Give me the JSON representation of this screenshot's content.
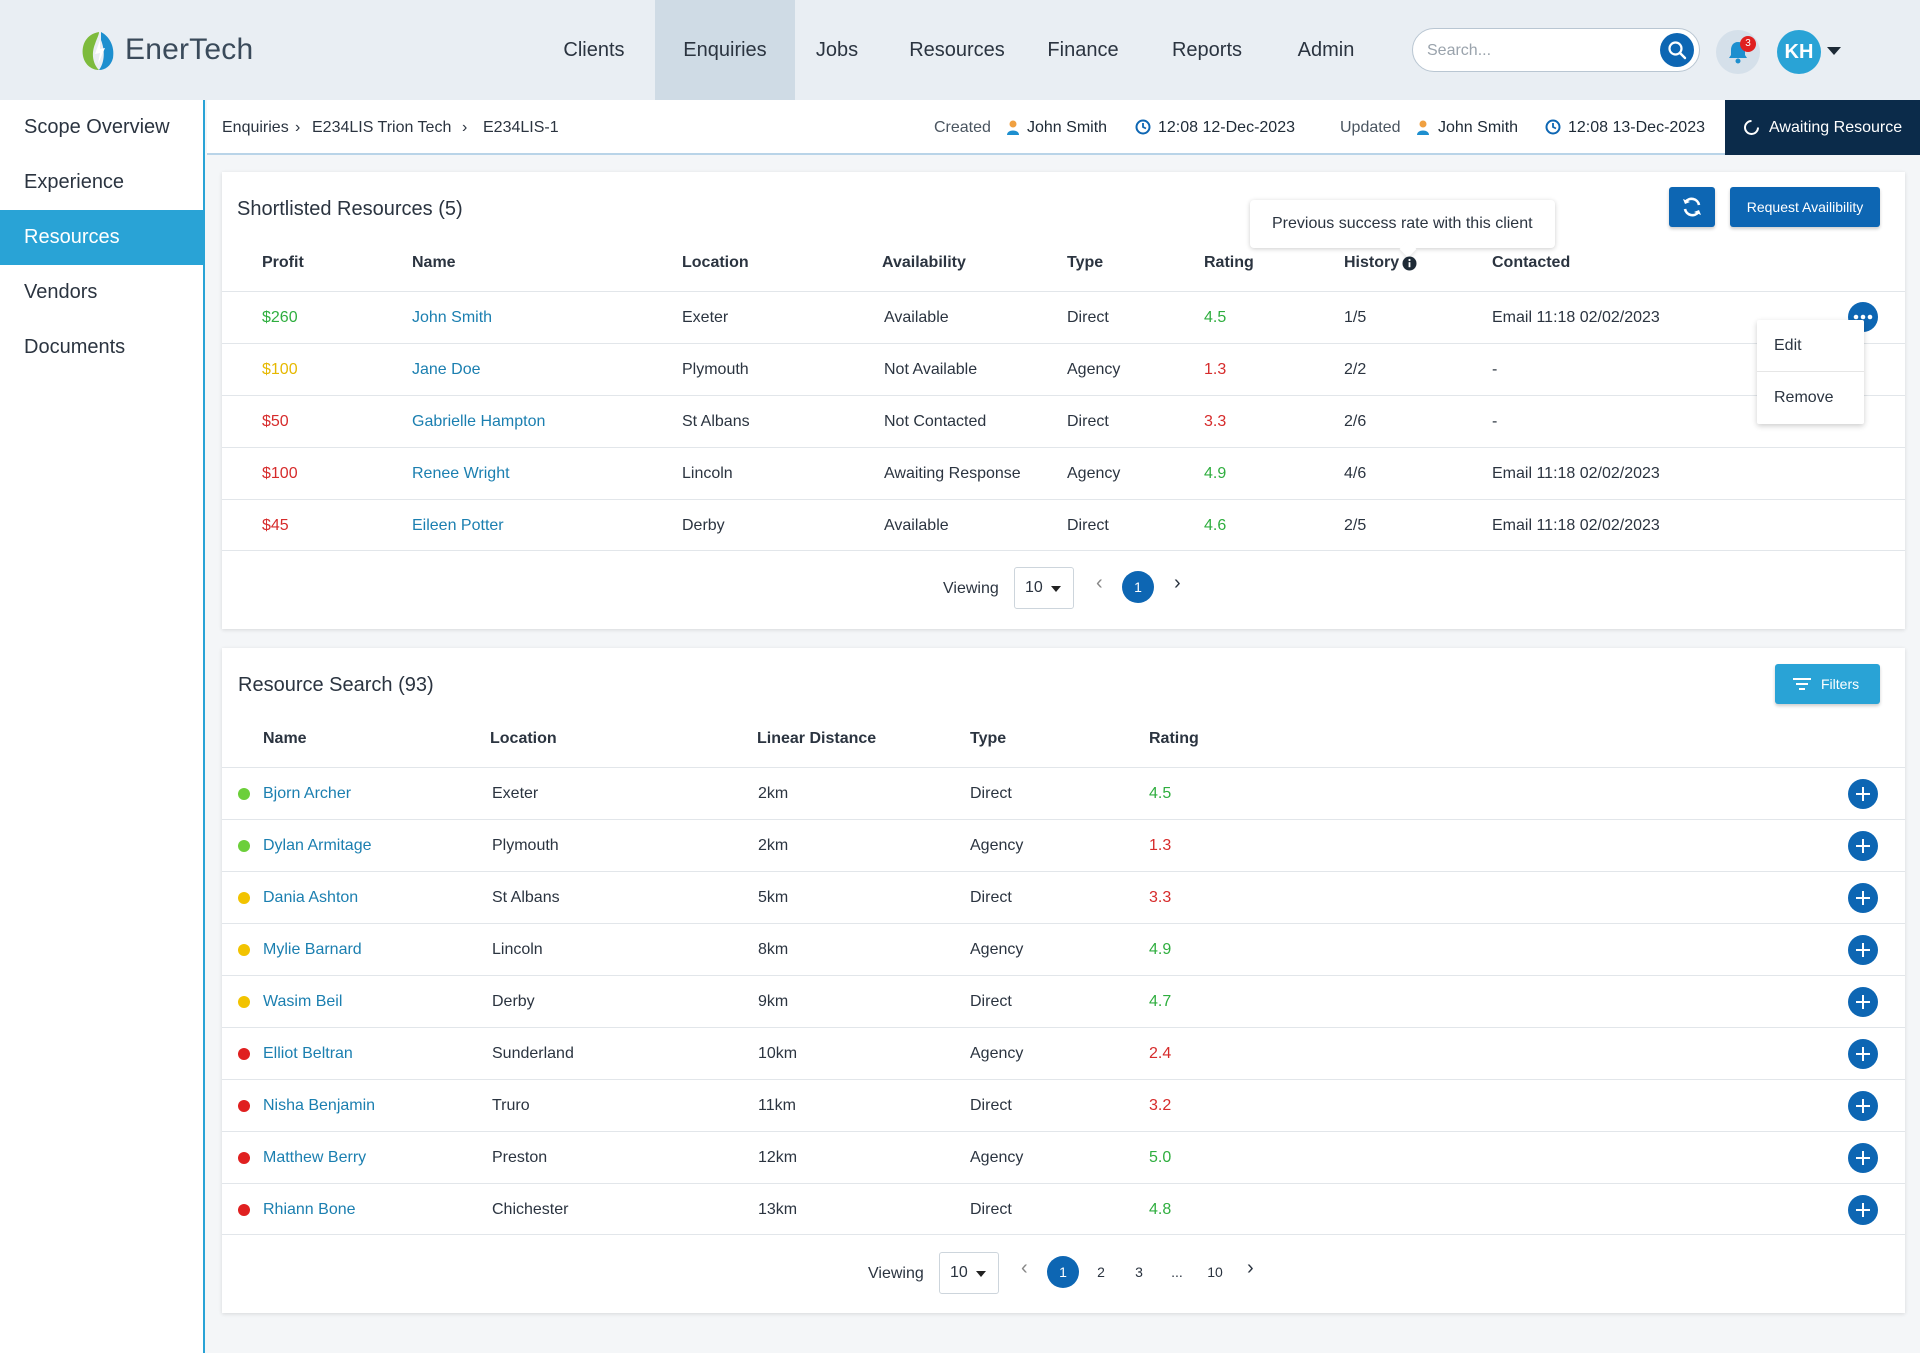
{
  "app": {
    "name": "EnerTech"
  },
  "nav": [
    "Clients",
    "Enquiries",
    "Jobs",
    "Resources",
    "Finance",
    "Reports",
    "Admin"
  ],
  "search": {
    "placeholder": "Search..."
  },
  "notifications": {
    "count": "3"
  },
  "user": {
    "initials": "KH"
  },
  "sidebar": [
    "Scope Overview",
    "Experience",
    "Resources",
    "Vendors",
    "Documents"
  ],
  "breadcrumb": [
    "Enquiries",
    "E234LIS  Trion Tech",
    "E234LIS-1"
  ],
  "meta": {
    "created_label": "Created",
    "created_by": "John Smith",
    "created_at": "12:08 12-Dec-2023",
    "updated_label": "Updated",
    "updated_by": "John Smith",
    "updated_at": "12:08 13-Dec-2023",
    "status": "Awaiting Resource"
  },
  "shortlist": {
    "title": "Shortlisted Resources (5)",
    "request_label": "Request Availibility",
    "tooltip": "Previous success rate with this client",
    "headers": [
      "Profit",
      "Name",
      "Location",
      "Availability",
      "Type",
      "Rating",
      "History",
      "Contacted"
    ],
    "rows": [
      {
        "profit": "$260",
        "name": "John Smith",
        "location": "Exeter",
        "availability": "Available",
        "type": "Direct",
        "rating": "4.5",
        "history": "1/5",
        "contacted": "Email 11:18 02/02/2023"
      },
      {
        "profit": "$100",
        "name": "Jane Doe",
        "location": "Plymouth",
        "availability": "Not Available",
        "type": "Agency",
        "rating": "1.3",
        "history": "2/2",
        "contacted": "-"
      },
      {
        "profit": "$50",
        "name": "Gabrielle Hampton",
        "location": "St Albans",
        "availability": "Not Contacted",
        "type": "Direct",
        "rating": "3.3",
        "history": "2/6",
        "contacted": "-"
      },
      {
        "profit": "$100",
        "name": "Renee Wright",
        "location": "Lincoln",
        "availability": "Awaiting Response",
        "type": "Agency",
        "rating": "4.9",
        "history": "4/6",
        "contacted": "Email 11:18 02/02/2023"
      },
      {
        "profit": "$45",
        "name": "Eileen Potter",
        "location": "Derby",
        "availability": "Available",
        "type": "Direct",
        "rating": "4.6",
        "history": "2/5",
        "contacted": "Email 11:18 02/02/2023"
      }
    ],
    "menu": [
      "Edit",
      "Remove"
    ],
    "pager": {
      "label": "Viewing",
      "size": "10",
      "pages": [
        "1"
      ]
    }
  },
  "search_results": {
    "title": "Resource Search (93)",
    "filters_label": "Filters",
    "headers": [
      "Name",
      "Location",
      "Linear Distance",
      "Type",
      "Rating"
    ],
    "rows": [
      {
        "name": "Bjorn Archer",
        "location": "Exeter",
        "distance": "2km",
        "type": "Direct",
        "rating": "4.5"
      },
      {
        "name": "Dylan Armitage",
        "location": "Plymouth",
        "distance": "2km",
        "type": "Agency",
        "rating": "1.3"
      },
      {
        "name": "Dania Ashton",
        "location": "St Albans",
        "distance": "5km",
        "type": "Direct",
        "rating": "3.3"
      },
      {
        "name": "Mylie Barnard",
        "location": "Lincoln",
        "distance": "8km",
        "type": "Agency",
        "rating": "4.9"
      },
      {
        "name": "Wasim Beil",
        "location": "Derby",
        "distance": "9km",
        "type": "Direct",
        "rating": "4.7"
      },
      {
        "name": "Elliot Beltran",
        "location": "Sunderland",
        "distance": "10km",
        "type": "Agency",
        "rating": "2.4"
      },
      {
        "name": "Nisha Benjamin",
        "location": "Truro",
        "distance": "11km",
        "type": "Direct",
        "rating": "3.2"
      },
      {
        "name": "Matthew Berry",
        "location": "Preston",
        "distance": "12km",
        "type": "Agency",
        "rating": "5.0"
      },
      {
        "name": "Rhiann Bone",
        "location": "Chichester",
        "distance": "13km",
        "type": "Direct",
        "rating": "4.8"
      }
    ],
    "pager": {
      "label": "Viewing",
      "size": "10",
      "pages": [
        "1",
        "2",
        "3",
        "...",
        "10"
      ]
    }
  },
  "colors": {
    "primary": "#0d66b3",
    "accent": "#29a3d6",
    "dark": "#0b2b4a",
    "good": "#2fae3f",
    "bad": "#d62b2b",
    "warn": "#e6b800"
  }
}
